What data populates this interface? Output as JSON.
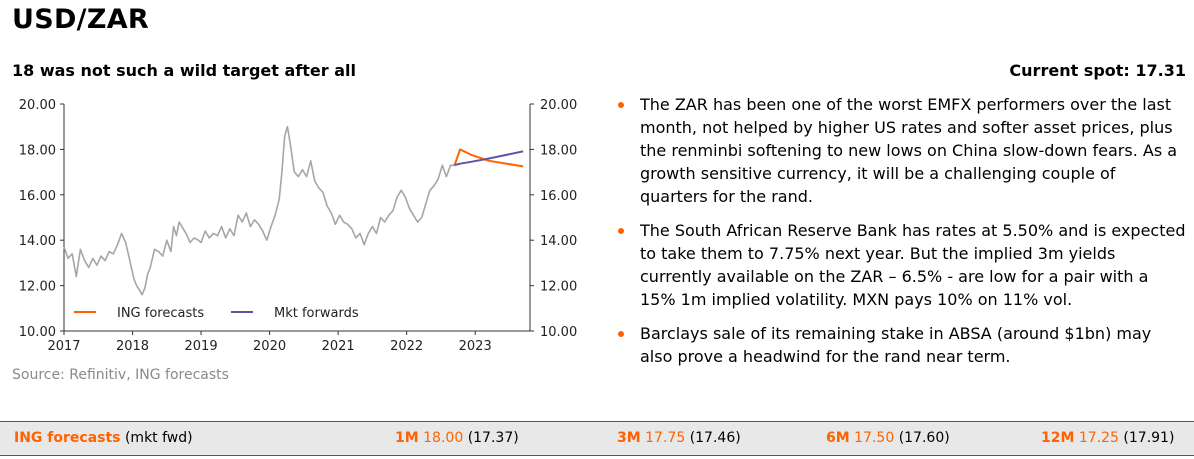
{
  "header": {
    "title": "USD/ZAR",
    "subtitle": "18 was not such a wild target after all",
    "current_spot": "Current spot: 17.31"
  },
  "source": "Source: Refinitiv, ING forecasts",
  "bullets": [
    "The ZAR has been one of the worst EMFX performers over the last month, not helped by higher US rates and softer asset prices, plus the renminbi softening to new lows on China slow-down fears. As a growth sensitive currency, it will be a challenging couple of quarters for the rand.",
    "The South African Reserve Bank has rates at 5.50% and is expected to take them to 7.75% next year. But the implied 3m yields currently available on the ZAR – 6.5% - are low for a pair with a 15% 1m implied volatility. MXN pays 10% on 11% vol.",
    "Barclays sale of its remaining stake in ABSA (around $1bn) may also prove a headwind for the rand near term."
  ],
  "forecast_bar": {
    "label_bold": "ING forecasts",
    "label_rest": " (mkt fwd)",
    "items": [
      {
        "horizon": "1M",
        "value": "18.00",
        "fwd": "(17.37)"
      },
      {
        "horizon": "3M",
        "value": "17.75",
        "fwd": "(17.46)"
      },
      {
        "horizon": "6M",
        "value": "17.50",
        "fwd": "(17.60)"
      },
      {
        "horizon": "12M",
        "value": "17.25",
        "fwd": "(17.91)"
      }
    ]
  },
  "colors": {
    "accent": "#ff6200",
    "spot_line": "#a6a6a6",
    "ing_forecast_line": "#ff6200",
    "mkt_forward_line": "#5b57a8"
  },
  "chart_data": {
    "type": "line",
    "title": "",
    "xlabel": "",
    "ylabel": "",
    "ylim": [
      10,
      20
    ],
    "xlim": [
      2017,
      2023.8
    ],
    "yticks": [
      "10.00",
      "12.00",
      "14.00",
      "16.00",
      "18.00",
      "20.00"
    ],
    "xticks": [
      "2017",
      "2018",
      "2019",
      "2020",
      "2021",
      "2022",
      "2023"
    ],
    "grid": false,
    "legend": {
      "position": "bottom-left",
      "entries": [
        "ING forecasts",
        "Mkt forwards"
      ]
    },
    "series": [
      {
        "name": "",
        "role": "spot",
        "x": [
          2017.0,
          2017.06,
          2017.12,
          2017.18,
          2017.24,
          2017.3,
          2017.36,
          2017.42,
          2017.48,
          2017.54,
          2017.6,
          2017.66,
          2017.72,
          2017.78,
          2017.84,
          2017.9,
          2017.96,
          2018.02,
          2018.06,
          2018.1,
          2018.14,
          2018.18,
          2018.22,
          2018.26,
          2018.32,
          2018.38,
          2018.44,
          2018.5,
          2018.56,
          2018.6,
          2018.64,
          2018.68,
          2018.72,
          2018.78,
          2018.84,
          2018.9,
          2018.96,
          2019.0,
          2019.06,
          2019.12,
          2019.18,
          2019.24,
          2019.3,
          2019.36,
          2019.42,
          2019.48,
          2019.54,
          2019.6,
          2019.66,
          2019.72,
          2019.78,
          2019.84,
          2019.9,
          2019.96,
          2020.02,
          2020.08,
          2020.14,
          2020.18,
          2020.22,
          2020.26,
          2020.3,
          2020.36,
          2020.42,
          2020.48,
          2020.54,
          2020.6,
          2020.66,
          2020.72,
          2020.78,
          2020.84,
          2020.9,
          2020.96,
          2021.02,
          2021.08,
          2021.14,
          2021.2,
          2021.26,
          2021.32,
          2021.38,
          2021.44,
          2021.5,
          2021.56,
          2021.62,
          2021.68,
          2021.74,
          2021.8,
          2021.86,
          2021.92,
          2021.98,
          2022.04,
          2022.1,
          2022.16,
          2022.22,
          2022.28,
          2022.34,
          2022.4,
          2022.46,
          2022.52,
          2022.58,
          2022.64,
          2022.7
        ],
        "values": [
          13.7,
          13.2,
          13.4,
          12.4,
          13.6,
          13.1,
          12.8,
          13.2,
          12.9,
          13.3,
          13.1,
          13.5,
          13.4,
          13.8,
          14.3,
          13.9,
          13.1,
          12.3,
          12.0,
          11.8,
          11.6,
          11.9,
          12.5,
          12.8,
          13.6,
          13.5,
          13.3,
          14.0,
          13.5,
          14.6,
          14.2,
          14.8,
          14.6,
          14.3,
          13.9,
          14.1,
          14.0,
          13.9,
          14.4,
          14.1,
          14.3,
          14.2,
          14.6,
          14.1,
          14.5,
          14.2,
          15.1,
          14.8,
          15.2,
          14.6,
          14.9,
          14.7,
          14.4,
          14.0,
          14.6,
          15.1,
          15.8,
          17.0,
          18.6,
          19.0,
          18.3,
          17.0,
          16.8,
          17.1,
          16.8,
          17.5,
          16.6,
          16.3,
          16.1,
          15.5,
          15.2,
          14.7,
          15.1,
          14.8,
          14.7,
          14.5,
          14.1,
          14.3,
          13.8,
          14.3,
          14.6,
          14.3,
          15.0,
          14.8,
          15.1,
          15.3,
          15.9,
          16.2,
          15.9,
          15.4,
          15.1,
          14.8,
          15.0,
          15.6,
          16.2,
          16.4,
          16.7,
          17.3,
          16.8,
          17.3,
          17.3
        ]
      },
      {
        "name": "ING forecasts",
        "x": [
          2022.7,
          2022.78,
          2022.95,
          2023.2,
          2023.7
        ],
        "values": [
          17.31,
          18.0,
          17.75,
          17.5,
          17.25
        ]
      },
      {
        "name": "Mkt forwards",
        "x": [
          2022.7,
          2022.78,
          2022.95,
          2023.2,
          2023.7
        ],
        "values": [
          17.31,
          17.37,
          17.46,
          17.6,
          17.91
        ]
      }
    ]
  }
}
